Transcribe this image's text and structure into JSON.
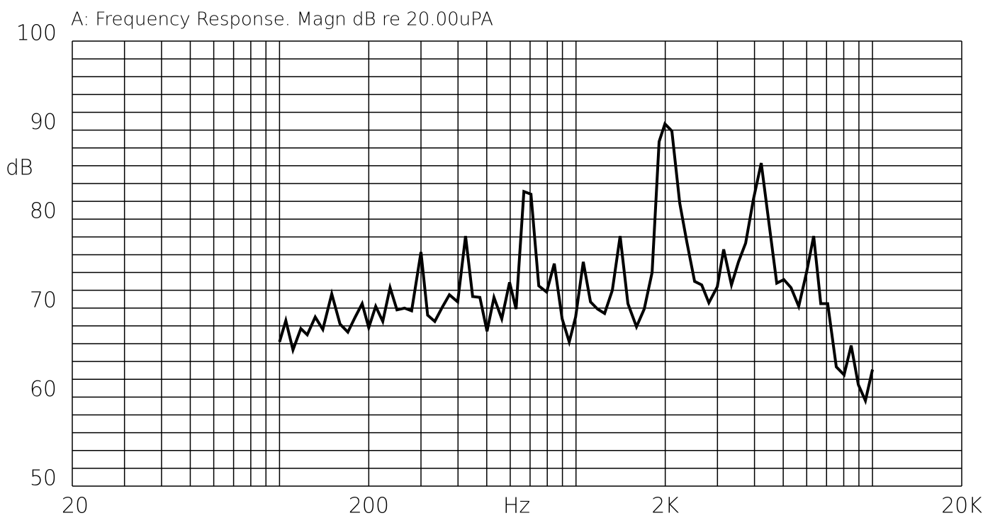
{
  "chart_data": {
    "type": "line",
    "title": "A: Frequency Response. Magn dB re 20.00uPA",
    "xlabel": "Hz",
    "ylabel": "dB",
    "xscale": "log",
    "grid": true,
    "color": "#000000",
    "xlim": [
      20,
      20000
    ],
    "ylim": [
      50,
      100
    ],
    "xticks": [
      20,
      200,
      {
        "value": 2000,
        "label": "2K"
      },
      {
        "value": 20000,
        "label": "20K"
      }
    ],
    "x_minor_ticks": [
      30,
      40,
      50,
      60,
      70,
      80,
      90,
      100,
      300,
      400,
      500,
      600,
      700,
      800,
      900,
      1000,
      3000,
      4000,
      5000,
      6000,
      7000,
      8000,
      9000,
      10000
    ],
    "yticks": [
      50,
      60,
      70,
      80,
      90,
      100
    ],
    "y_minor_ticks": [
      52,
      54,
      56,
      58,
      62,
      64,
      66,
      68,
      72,
      74,
      76,
      78,
      82,
      84,
      86,
      88,
      92,
      94,
      96,
      98
    ],
    "x": [
      100,
      105,
      111,
      118,
      124,
      132,
      140,
      150,
      160,
      170,
      180,
      190,
      200,
      211,
      223,
      236,
      249,
      264,
      279,
      300,
      316,
      334,
      354,
      374,
      399,
      424,
      448,
      474,
      501,
      529,
      562,
      597,
      628,
      667,
      705,
      749,
      796,
      845,
      898,
      949,
      997,
      1058,
      1119,
      1182,
      1249,
      1326,
      1409,
      1497,
      1600,
      1699,
      1806,
      1907,
      1995,
      2106,
      2238,
      2366,
      2512,
      2655,
      2806,
      2996,
      3148,
      3345,
      3533,
      3734,
      3964,
      4214,
      4477,
      4755,
      5024,
      5310,
      5640,
      5992,
      6333,
      6693,
      7065,
      7550,
      8019,
      8475,
      8957,
      9466,
      10000
    ],
    "values": [
      66.2,
      68.6,
      65.3,
      67.7,
      67.0,
      69.0,
      67.6,
      71.6,
      68.2,
      67.3,
      69.0,
      70.5,
      67.8,
      70.2,
      68.5,
      72.3,
      69.8,
      70.0,
      69.7,
      76.3,
      69.2,
      68.5,
      70.1,
      71.5,
      70.7,
      78.1,
      71.3,
      71.2,
      67.4,
      71.2,
      68.8,
      72.9,
      69.9,
      83.1,
      82.8,
      72.5,
      71.8,
      75.0,
      68.8,
      66.2,
      69.0,
      75.2,
      70.7,
      69.9,
      69.4,
      72.0,
      78.1,
      70.5,
      67.9,
      69.9,
      74.0,
      88.7,
      90.7,
      89.9,
      81.8,
      77.4,
      73.0,
      72.6,
      70.6,
      72.4,
      76.6,
      72.6,
      75.2,
      77.3,
      82.2,
      86.3,
      79.5,
      72.8,
      73.2,
      72.3,
      70.2,
      74.0,
      78.1,
      70.5,
      70.5,
      63.4,
      62.5,
      65.8,
      61.4,
      59.6,
      63.1
    ]
  }
}
